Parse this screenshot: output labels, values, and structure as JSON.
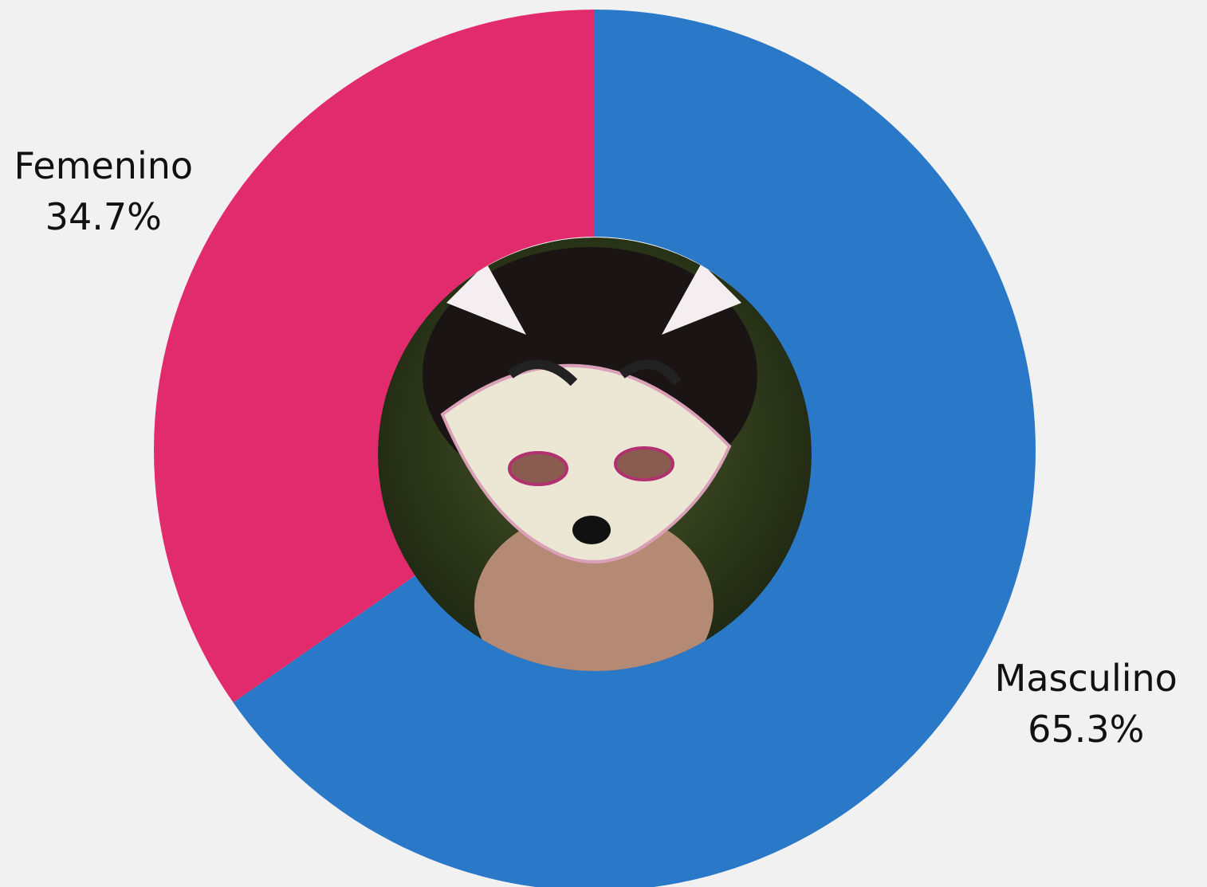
{
  "chart_data": {
    "type": "donut",
    "categories": [
      "Masculino",
      "Femenino"
    ],
    "values": [
      65.3,
      34.7
    ],
    "value_labels": [
      "65.3%",
      "34.7%"
    ],
    "colors": [
      "#2a78c8",
      "#e22b6c"
    ]
  }
}
